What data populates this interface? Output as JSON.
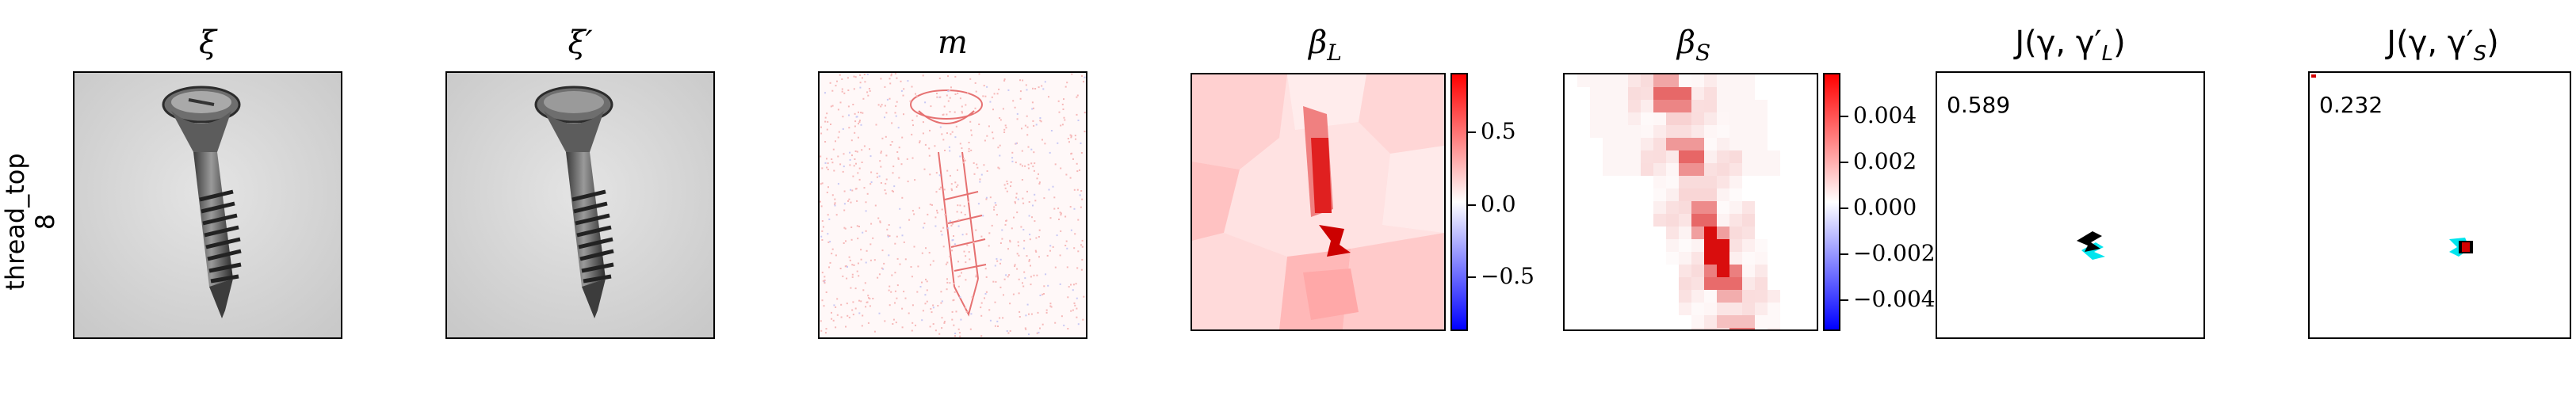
{
  "row_label": {
    "line1": "thread_top",
    "line2": "8"
  },
  "panels": [
    {
      "id": "xi",
      "title": "ξ"
    },
    {
      "id": "xi_prime",
      "title": "ξ′"
    },
    {
      "id": "m",
      "title": "m"
    },
    {
      "id": "beta_L",
      "title_base": "β",
      "title_sub": "L"
    },
    {
      "id": "beta_S",
      "title_base": "β",
      "title_sub": "S"
    },
    {
      "id": "J_L",
      "title_prefix": "J(γ, γ′",
      "title_sub": "L",
      "title_suffix": ")",
      "score": "0.589"
    },
    {
      "id": "J_S",
      "title_prefix": "J(γ, γ′",
      "title_sub": "S",
      "title_suffix": ")",
      "score": "0.232"
    }
  ],
  "colorbar_L": {
    "ticks": [
      "0.5",
      "0.0",
      "−0.5"
    ],
    "low_color": "#0000ff",
    "mid_color": "#ffffff",
    "high_color": "#ff0000"
  },
  "colorbar_S": {
    "ticks": [
      "0.004",
      "0.002",
      "0.000",
      "−0.002",
      "−0.004"
    ],
    "low_color": "#0000ff",
    "mid_color": "#ffffff",
    "high_color": "#ff0000"
  },
  "colors": {
    "highlight_black": "#000000",
    "highlight_cyan": "#00e5ee",
    "overlap_red": "#d40000"
  }
}
